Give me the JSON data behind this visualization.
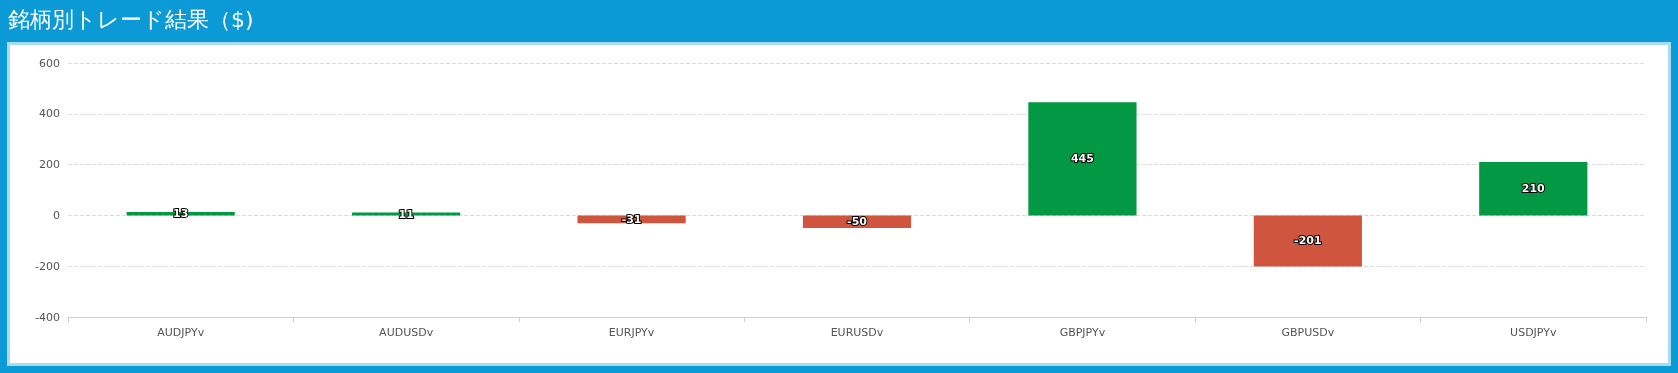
{
  "chart_data": {
    "type": "bar",
    "title": "銘柄別トレード結果（$)",
    "categories": [
      "AUDJPYv",
      "AUDUSDv",
      "EURJPYv",
      "EURUSDv",
      "GBPJPYv",
      "GBPUSDv",
      "USDJPYv"
    ],
    "values": [
      13,
      11,
      -31,
      -50,
      445,
      -201,
      210
    ],
    "colors": [
      "#039944",
      "#039944",
      "#d0553f",
      "#d0553f",
      "#039944",
      "#d0553f",
      "#039944"
    ],
    "ylim": [
      -400,
      600
    ],
    "yticks": [
      -400,
      -200,
      0,
      200,
      400,
      600
    ],
    "grid": "y",
    "data_labels": true
  }
}
